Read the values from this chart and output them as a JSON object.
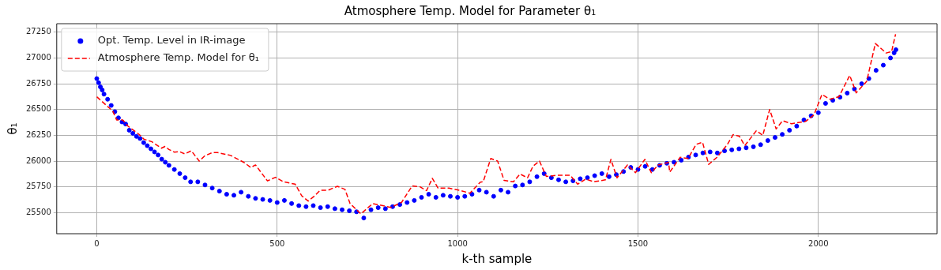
{
  "chart_data": {
    "type": "scatter",
    "title": "Atmosphere Temp. Model for Parameter θ₁",
    "xlabel": "k-th sample",
    "ylabel": "θ₁",
    "xlim": [
      -111,
      2329
    ],
    "xticks": [
      0,
      500,
      1000,
      1500,
      2000
    ],
    "ylim": [
      25298,
      27332
    ],
    "yticks": [
      25500,
      25750,
      26000,
      26250,
      26500,
      26750,
      27000,
      27250
    ],
    "grid": true,
    "legend": "top left",
    "series": [
      {
        "name": "Opt. Temp. Level in IR-image",
        "type": "scatter",
        "marker": "circle",
        "color": "#0000ff",
        "x": [
          0,
          5,
          10,
          15,
          20,
          30,
          40,
          50,
          60,
          70,
          80,
          90,
          100,
          110,
          120,
          130,
          140,
          150,
          160,
          170,
          180,
          190,
          200,
          215,
          230,
          245,
          260,
          280,
          300,
          320,
          340,
          360,
          380,
          400,
          420,
          440,
          460,
          480,
          500,
          520,
          540,
          560,
          580,
          600,
          620,
          640,
          660,
          680,
          700,
          720,
          740,
          760,
          780,
          800,
          820,
          840,
          860,
          880,
          900,
          920,
          940,
          960,
          980,
          1000,
          1020,
          1040,
          1060,
          1080,
          1100,
          1120,
          1140,
          1160,
          1180,
          1200,
          1220,
          1240,
          1260,
          1280,
          1300,
          1320,
          1340,
          1360,
          1380,
          1400,
          1420,
          1440,
          1460,
          1480,
          1500,
          1520,
          1540,
          1560,
          1580,
          1600,
          1620,
          1640,
          1660,
          1680,
          1700,
          1720,
          1740,
          1760,
          1780,
          1800,
          1820,
          1840,
          1860,
          1880,
          1900,
          1920,
          1940,
          1960,
          1980,
          2000,
          2020,
          2040,
          2060,
          2080,
          2100,
          2120,
          2140,
          2160,
          2180,
          2200,
          2210,
          2215
        ],
        "values": [
          26800,
          26760,
          26720,
          26690,
          26650,
          26600,
          26540,
          26480,
          26420,
          26380,
          26360,
          26300,
          26270,
          26240,
          26220,
          26180,
          26150,
          26120,
          26090,
          26060,
          26020,
          25990,
          25960,
          25920,
          25880,
          25840,
          25800,
          25800,
          25770,
          25740,
          25710,
          25680,
          25670,
          25700,
          25660,
          25640,
          25630,
          25620,
          25600,
          25620,
          25590,
          25570,
          25560,
          25570,
          25550,
          25560,
          25540,
          25530,
          25520,
          25510,
          25450,
          25530,
          25550,
          25540,
          25560,
          25580,
          25600,
          25620,
          25650,
          25680,
          25650,
          25670,
          25660,
          25650,
          25660,
          25680,
          25720,
          25700,
          25660,
          25720,
          25700,
          25760,
          25770,
          25800,
          25850,
          25880,
          25840,
          25820,
          25800,
          25810,
          25830,
          25840,
          25860,
          25880,
          25850,
          25870,
          25900,
          25940,
          25920,
          25950,
          25920,
          25960,
          25980,
          25990,
          26010,
          26040,
          26060,
          26080,
          26090,
          26080,
          26100,
          26110,
          26120,
          26130,
          26140,
          26160,
          26200,
          26230,
          26260,
          26300,
          26340,
          26400,
          26440,
          26470,
          26560,
          26590,
          26620,
          26660,
          26700,
          26750,
          26800,
          26880,
          26930,
          27000,
          27050,
          27080
        ]
      },
      {
        "name": "Atmosphere Temp. Model for θ₁",
        "type": "line",
        "marker": "none",
        "line_style": "dashed",
        "color": "#ff0000",
        "x": [
          0,
          44,
          55,
          72,
          87,
          116,
          131,
          153,
          179,
          189,
          200,
          215,
          229,
          244,
          262,
          284,
          299,
          320,
          335,
          371,
          408,
          427,
          440,
          473,
          495,
          517,
          550,
          568,
          586,
          604,
          619,
          641,
          667,
          688,
          702,
          732,
          765,
          815,
          845,
          874,
          896,
          914,
          930,
          946,
          976,
          1009,
          1034,
          1063,
          1071,
          1092,
          1111,
          1129,
          1155,
          1173,
          1194,
          1209,
          1227,
          1246,
          1275,
          1312,
          1333,
          1355,
          1377,
          1410,
          1425,
          1442,
          1471,
          1493,
          1519,
          1537,
          1556,
          1585,
          1588,
          1617,
          1639,
          1661,
          1679,
          1696,
          1719,
          1748,
          1764,
          1781,
          1796,
          1828,
          1846,
          1865,
          1883,
          1901,
          1926,
          1966,
          1988,
          2010,
          2032,
          2057,
          2087,
          2105,
          2134,
          2158,
          2188,
          2203,
          2214
        ],
        "values": [
          26624,
          26487,
          26400,
          26400,
          26338,
          26263,
          26213,
          26188,
          26126,
          26143,
          26113,
          26088,
          26093,
          26071,
          26101,
          26001,
          26051,
          26083,
          26083,
          26056,
          25988,
          25939,
          25964,
          25809,
          25844,
          25801,
          25777,
          25665,
          25614,
          25665,
          25719,
          25719,
          25757,
          25727,
          25590,
          25490,
          25590,
          25552,
          25602,
          25760,
          25752,
          25715,
          25834,
          25739,
          25739,
          25715,
          25690,
          25797,
          25801,
          26026,
          26001,
          25814,
          25801,
          25876,
          25839,
          25951,
          26001,
          25852,
          25864,
          25864,
          25777,
          25827,
          25801,
          25819,
          26018,
          25839,
          25964,
          25889,
          26018,
          25889,
          25964,
          25988,
          25894,
          26038,
          26026,
          26163,
          26183,
          25969,
          26038,
          26163,
          26258,
          26243,
          26151,
          26295,
          26250,
          26500,
          26313,
          26392,
          26362,
          26388,
          26450,
          26647,
          26600,
          26624,
          26831,
          26662,
          26774,
          27140,
          27048,
          27061,
          27230
        ]
      }
    ]
  }
}
